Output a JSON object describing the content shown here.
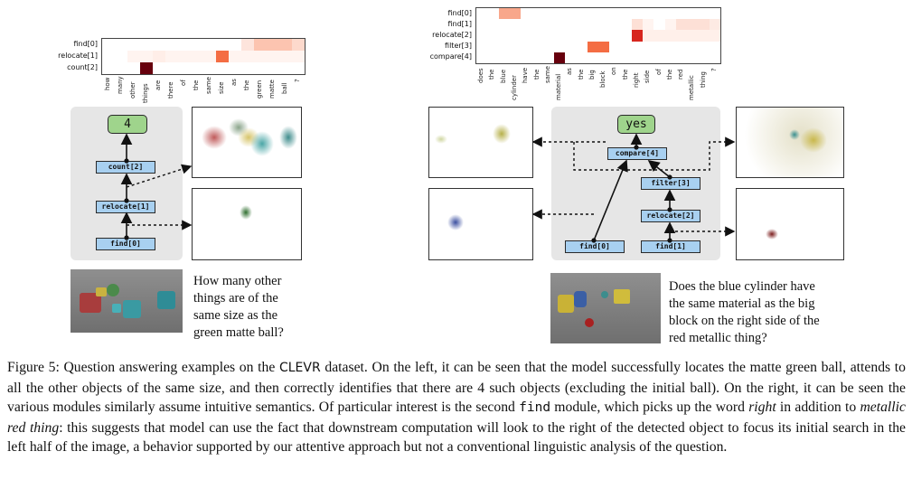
{
  "left": {
    "rows": [
      "find[0]",
      "relocate[1]",
      "count[2]"
    ],
    "words": [
      "how",
      "many",
      "other",
      "things",
      "are",
      "there",
      "of",
      "the",
      "same",
      "size",
      "as",
      "the",
      "green",
      "matte",
      "ball",
      "?"
    ],
    "heat": [
      [
        "#ffffff",
        "#ffffff",
        "#ffffff",
        "#ffffff",
        "#ffffff",
        "#ffffff",
        "#ffffff",
        "#ffffff",
        "#ffffff",
        "#ffffff",
        "#ffffff",
        "#fde4dc",
        "#fcc4b0",
        "#fcc4b0",
        "#fcc4b0",
        "#fdd9cc"
      ],
      [
        "#ffffff",
        "#ffffff",
        "#fff4f0",
        "#fff4f0",
        "#ffeee8",
        "#fff4f0",
        "#fff4f0",
        "#fff4f0",
        "#fff4f0",
        "#f46d43",
        "#fff4f0",
        "#fff4f0",
        "#fff4f0",
        "#fff4f0",
        "#fff4f0",
        "#fff4f0"
      ],
      [
        "#ffffff",
        "#ffffff",
        "#ffffff",
        "#67000d",
        "#ffffff",
        "#ffffff",
        "#ffffff",
        "#ffffff",
        "#ffffff",
        "#ffffff",
        "#ffffff",
        "#ffffff",
        "#ffffff",
        "#ffffff",
        "#ffffff",
        "#ffffff"
      ]
    ],
    "modules": {
      "answer": "4",
      "count": "count[2]",
      "relocate": "relocate[1]",
      "find": "find[0]"
    },
    "question": [
      "How many other",
      "things are of the",
      "same size as the",
      "green matte ball?"
    ]
  },
  "right": {
    "rows": [
      "find[0]",
      "find[1]",
      "relocate[2]",
      "filter[3]",
      "compare[4]"
    ],
    "words": [
      "does",
      "the",
      "blue",
      "cylinder",
      "have",
      "the",
      "same",
      "material",
      "as",
      "the",
      "big",
      "block",
      "on",
      "the",
      "right",
      "side",
      "of",
      "the",
      "red",
      "metallic",
      "thing",
      "?"
    ],
    "heat": [
      [
        "#ffffff",
        "#ffffff",
        "#f8a78b",
        "#f8a78b",
        "#ffffff",
        "#ffffff",
        "#ffffff",
        "#ffffff",
        "#ffffff",
        "#ffffff",
        "#ffffff",
        "#ffffff",
        "#ffffff",
        "#ffffff",
        "#ffffff",
        "#ffffff",
        "#ffffff",
        "#ffffff",
        "#ffffff",
        "#ffffff",
        "#ffffff",
        "#ffffff"
      ],
      [
        "#ffffff",
        "#ffffff",
        "#ffffff",
        "#ffffff",
        "#ffffff",
        "#ffffff",
        "#ffffff",
        "#ffffff",
        "#ffffff",
        "#ffffff",
        "#ffffff",
        "#ffffff",
        "#ffffff",
        "#ffffff",
        "#fde0d6",
        "#fff4f0",
        "#ffffff",
        "#fff4f0",
        "#fde0d6",
        "#fde0d6",
        "#fde0d6",
        "#fdeae3"
      ],
      [
        "#ffffff",
        "#ffffff",
        "#ffffff",
        "#ffffff",
        "#ffffff",
        "#ffffff",
        "#ffffff",
        "#ffffff",
        "#ffffff",
        "#ffffff",
        "#ffffff",
        "#ffffff",
        "#ffffff",
        "#ffffff",
        "#d7261e",
        "#fff0ea",
        "#fff0ea",
        "#fff0ea",
        "#fff0ea",
        "#fff0ea",
        "#fff0ea",
        "#fff0ea"
      ],
      [
        "#ffffff",
        "#ffffff",
        "#ffffff",
        "#ffffff",
        "#ffffff",
        "#ffffff",
        "#ffffff",
        "#ffffff",
        "#ffffff",
        "#ffffff",
        "#f46d43",
        "#f46d43",
        "#ffffff",
        "#ffffff",
        "#ffffff",
        "#ffffff",
        "#ffffff",
        "#ffffff",
        "#ffffff",
        "#ffffff",
        "#ffffff",
        "#ffffff"
      ],
      [
        "#ffffff",
        "#ffffff",
        "#ffffff",
        "#ffffff",
        "#ffffff",
        "#ffffff",
        "#ffffff",
        "#67000d",
        "#ffffff",
        "#ffffff",
        "#ffffff",
        "#ffffff",
        "#ffffff",
        "#ffffff",
        "#ffffff",
        "#ffffff",
        "#ffffff",
        "#ffffff",
        "#ffffff",
        "#ffffff",
        "#ffffff",
        "#ffffff"
      ]
    ],
    "modules": {
      "answer": "yes",
      "compare": "compare[4]",
      "filter": "filter[3]",
      "relocate": "relocate[2]",
      "find0": "find[0]",
      "find1": "find[1]"
    },
    "question": [
      "Does the blue cylinder have",
      "the same material as the big",
      "block on the right side of the",
      "red metallic thing?"
    ]
  },
  "caption": {
    "p1": "Figure 5: Question answering examples on the ",
    "clevr": "CLEVR",
    "p2": " dataset. On the left, it can be seen that the model successfully locates the matte green ball, attends to all the other objects of the same size, and then correctly identifies that there are 4 such objects (excluding the initial ball). On the right, it can be seen the various modules similarly assume intuitive semantics. Of particular interest is the second ",
    "find": "find",
    "p3": " module, which picks up the word ",
    "right": "right",
    "p4": " in addition to ",
    "metallic": "metallic red thing",
    "p5": ": this suggests that model can use the fact that downstream computation will look to the right of the detected object to focus its initial search in the left half of the image, a behavior supported by our attentive approach but not a conventional linguistic analysis of the question."
  }
}
